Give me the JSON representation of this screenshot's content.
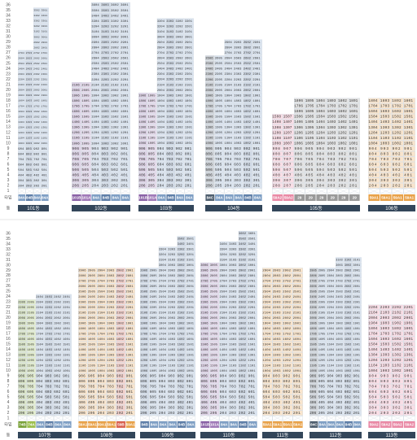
{
  "type_colors": {
    "84A": "#7f9fc4",
    "84B": "#5f7fa8",
    "84C": "#4f5f6f",
    "101A": "#a07ab8",
    "101B": "#8a62a6",
    "59A1": "#e8a24a",
    "59A2": "#e98aa6",
    "59B": "#d9604f",
    "29": "#9a9a9a",
    "74A": "#9cbf4e",
    "74B": "#7aa23a"
  },
  "panels": [
    {
      "floor_labels": [
        "36",
        "35",
        "34",
        "33",
        "32",
        "31",
        "30",
        "29",
        "28",
        "27",
        "26",
        "25",
        "24",
        "23",
        "22",
        "21",
        "20",
        "19",
        "18",
        "17",
        "16",
        "15",
        "14",
        "13",
        "12",
        "11",
        "10",
        "9",
        "8",
        "7",
        "6",
        "5",
        "4",
        "3",
        "2",
        "1"
      ],
      "type_label": "타입",
      "building_label": "동",
      "buildings": [
        {
          "name": "101동",
          "types": [
            "84A",
            "84B",
            "84A",
            "84A"
          ],
          "rows": [
            "3502 3501",
            "3402 3401",
            "3302 3301",
            "3202 3201",
            "3102 3101",
            "3002 3001",
            "2902 2901",
            "2802 2801",
            "2704 2703 2702 2701",
            "2604 2603 2602 2601",
            "2504 2503 2502 2501",
            "2404 2403 2402 2401",
            "2304 2303 2302 2301",
            "2204 2203 2202 2201",
            "2104 2103 2102 2101",
            "2004 2003 2002 2001",
            "1904 1903 1902 1901",
            "1804 1803 1802 1801",
            "1704 1703 1702 1701",
            "1604 1603 1602 1601",
            "1504 1503 1502 1501",
            "1404 1403 1402 1401",
            "1304 1303 1302 1301",
            "1204 1203 1202 1201",
            "1104 1103 1102 1101",
            "1004 1003 1002 1001",
            "904 903 902 901",
            "804 803 802 801",
            "704 703 702 701",
            "604 603 602 601",
            "504 503 502 501",
            "404 403 402 401",
            "304 303 302 301",
            "204 203 202 201"
          ]
        },
        {
          "name": "102동",
          "types": [
            "101B",
            "101A",
            "84A",
            "84B",
            "84A",
            "84A"
          ],
          "rows": [
            "3604 3603 3602 3601",
            "3504 3503 3502 3501",
            "3404 3403 3402 3401",
            "3304 3303 3302 3301",
            "3204 3203 3202 3201",
            "3104 3103 3102 3101",
            "3004 3003 3002 3001",
            "2904 2903 2902 2901",
            "2804 2803 2802 2801",
            "2704 2703 2702 2701",
            "2604 2603 2602 2601",
            "2504 2503 2502 2501",
            "2404 2403 2402 2401",
            "2304 2303 2302 2301",
            "2204 2203 2202 2201",
            "2106 2105 2104 2103 2102 2101",
            "2006 2005 2004 2003 2002 2001",
            "1906 1905 1904 1903 1902 1901",
            "1806 1805 1804 1803 1802 1801",
            "1706 1705 1704 1703 1702 1701",
            "1606 1605 1604 1603 1602 1601",
            "1506 1505 1504 1503 1502 1501",
            "1406 1405 1404 1403 1402 1401",
            "1306 1305 1304 1303 1302 1301",
            "1206 1205 1204 1203 1202 1201",
            "1106 1105 1104 1103 1102 1101",
            "1006 1005 1004 1003 1002 1001",
            "906 905 904 903 902 901",
            "806 805 804 803 802 801",
            "706 705 704 703 702 701",
            "606 605 604 603 602 601",
            "506 505 504 503 502 501",
            "406 405 404 403 402 401",
            "306 305 304 303 302 301",
            "206 205 204 203 202 201"
          ]
        },
        {
          "name": "103동",
          "types": [
            "101B",
            "101A",
            "84A",
            "84B",
            "84A",
            "84A"
          ],
          "rows": [
            "3304 3303 3302 3301",
            "3204 3203 3202 3201",
            "3104 3103 3102 3101",
            "3004 3003 3002 3001",
            "2904 2903 2902 2901",
            "2804 2803 2802 2801",
            "2704 2703 2702 2701",
            "2604 2603 2602 2601",
            "2504 2503 2502 2501",
            "2404 2403 2402 2401",
            "2304 2303 2302 2301",
            "2204 2203 2202 2201",
            "2104 2103 2102 2101",
            "2004 2003 2002 2001",
            "1906 1905 1904 1903 1902 1901",
            "1806 1805 1804 1803 1802 1801",
            "1706 1705 1704 1703 1702 1701",
            "1606 1605 1604 1603 1602 1601",
            "1506 1505 1504 1503 1502 1501",
            "1406 1405 1404 1403 1402 1401",
            "1306 1305 1304 1303 1302 1301",
            "1206 1205 1204 1203 1202 1201",
            "1106 1105 1104 1103 1102 1101",
            "1006 1005 1004 1003 1002 1001",
            "906 905 904 903 902 901",
            "806 805 804 803 802 801",
            "706 705 704 703 702 701",
            "606 605 604 603 602 601",
            "506 505 504 503 502 501",
            "406 405 404 403 402 401",
            "306 305 304 303 302 301",
            "206 205 204 203 202 201"
          ]
        },
        {
          "name": "104동",
          "types": [
            "84C",
            "84A",
            "84A",
            "84A",
            "84B",
            "84A"
          ],
          "rows": [
            "2904 2903 2902 2901",
            "2804 2803 2802 2801",
            "2704 2703 2702 2701",
            "2606 2605 2604 2603 2602 2601",
            "2506 2505 2504 2503 2502 2501",
            "2406 2405 2404 2403 2402 2401",
            "2306 2305 2304 2303 2302 2301",
            "2206 2205 2204 2203 2202 2201",
            "2106 2105 2104 2103 2102 2101",
            "2006 2005 2004 2003 2002 2001",
            "1906 1905 1904 1903 1902 1901",
            "1806 1805 1804 1803 1802 1801",
            "1706 1705 1704 1703 1702 1701",
            "1606 1605 1604 1603 1602 1601",
            "1506 1505 1504 1503 1502 1501",
            "1406 1405 1404 1403 1402 1401",
            "1306 1305 1304 1303 1302 1301",
            "1206 1205 1204 1203 1202 1201",
            "1106 1105 1104 1103 1102 1101",
            "1006 1005 1004 1003 1002 1001",
            "906 905 904 903 902 901",
            "806 805 804 803 802 801",
            "706 705 704 703 702 701",
            "606 605 604 603 602 601",
            "506 505 504 503 502 501",
            "406 405 404 403 402 401",
            "306 305 304 303 302 301",
            "206 205 204 203 202 201"
          ]
        },
        {
          "name": "105동",
          "types": [
            "59A2",
            "59A2",
            "29",
            "29",
            "29",
            "29",
            "29",
            "29"
          ],
          "rows": [
            "1806 1805 1804 1803 1802 1801",
            "1706 1705 1704 1703 1702 1701",
            "1606 1605 1604 1603 1602 1601",
            "1508 1507 1506 1505 1504 1503 1502 1501",
            "1408 1407 1406 1405 1404 1403 1402 1401",
            "1308 1307 1306 1305 1304 1303 1302 1301",
            "1208 1207 1206 1205 1204 1203 1202 1201",
            "1108 1107 1106 1105 1104 1103 1102 1101",
            "1008 1007 1006 1005 1004 1003 1002 1001",
            "908 907 906 905 904 903 902 901",
            "808 807 806 805 804 803 802 801",
            "708 707 706 705 704 703 702 701",
            "608 607 606 605 604 603 602 601",
            "508 507 506 505 504 503 502 501",
            "408 407 406 405 404 403 402 401",
            "308 307 306 305 304 303 302 301",
            "208 207 206 205 204 203 202 201"
          ]
        },
        {
          "name": "106동",
          "types": [
            "59A1",
            "59A1",
            "59A1",
            "59A1"
          ],
          "rows": [
            "1804 1803 1802 1801",
            "1704 1703 1702 1701",
            "1604 1603 1602 1601",
            "1504 1503 1502 1501",
            "1404 1403 1402 1401",
            "1304 1303 1302 1301",
            "1204 1203 1202 1201",
            "1104 1103 1102 1101",
            "1004 1003 1002 1001",
            "904 903 902 901",
            "804 803 802 801",
            "704 703 702 701",
            "604 603 602 601",
            "504 503 502 501",
            "404 403 402 401",
            "304 303 302 301",
            "204 203 202 201"
          ]
        }
      ]
    },
    {
      "floor_labels": [
        "36",
        "35",
        "34",
        "33",
        "32",
        "31",
        "30",
        "29",
        "28",
        "27",
        "26",
        "25",
        "24",
        "23",
        "22",
        "21",
        "20",
        "19",
        "18",
        "17",
        "16",
        "15",
        "14",
        "13",
        "12",
        "11",
        "10",
        "9",
        "8",
        "7",
        "6",
        "5",
        "4",
        "3",
        "2",
        "1"
      ],
      "type_label": "타입",
      "building_label": "동",
      "buildings": [
        {
          "name": "107동",
          "types": [
            "74B",
            "74A",
            "84A",
            "84B",
            "84A",
            "84A"
          ],
          "rows": [
            "2404 2403 2402 2401",
            "2306 2305 2304 2303 2302 2301",
            "2206 2205 2204 2203 2202 2201",
            "2106 2105 2104 2103 2102 2101",
            "2006 2005 2004 2003 2002 2001",
            "1906 1905 1904 1903 1902 1901",
            "1806 1805 1804 1803 1802 1801",
            "1706 1705 1704 1703 1702 1701",
            "1606 1605 1604 1603 1602 1601",
            "1506 1505 1504 1503 1502 1501",
            "1406 1405 1404 1403 1402 1401",
            "1306 1305 1304 1303 1302 1301",
            "1206 1205 1204 1203 1202 1201",
            "1106 1105 1104 1103 1102 1101",
            "1006 1005 1004 1003 1002 1001",
            "906 905 904 903 902 901",
            "806 805 804 803 802 801",
            "706 705 704 703 702 701",
            "606 605 604 603 602 601",
            "506 505 504 503 502 501",
            "406 405 404 403 402 401",
            "306 305 304 303 302 301",
            "206 205 204 203 202 201"
          ]
        },
        {
          "name": "108동",
          "types": [
            "59A1",
            "59A1",
            "59A1",
            "59A1",
            "59B",
            "59A1"
          ],
          "rows": [
            "2906 2905 2904 2903 2902 2901",
            "2806 2805 2804 2803 2802 2801",
            "2706 2705 2704 2703 2702 2701",
            "2606 2605 2604 2603 2602 2601",
            "2506 2505 2504 2503 2502 2501",
            "2406 2405 2404 2403 2402 2401",
            "2306 2305 2304 2303 2302 2301",
            "2206 2205 2204 2203 2202 2201",
            "2106 2105 2104 2103 2102 2101",
            "2006 2005 2004 2003 2002 2001",
            "1906 1905 1904 1903 1902 1901",
            "1806 1805 1804 1803 1802 1801",
            "1706 1705 1704 1703 1702 1701",
            "1606 1605 1604 1603 1602 1601",
            "1506 1505 1504 1503 1502 1501",
            "1406 1405 1404 1403 1402 1401",
            "1306 1305 1304 1303 1302 1301",
            "1206 1205 1204 1203 1202 1201",
            "1106 1105 1104 1103 1102 1101",
            "1006 1005 1004 1003 1002 1001",
            "906 905 904 903 902 901",
            "806 805 804 803 802 801",
            "706 705 704 703 702 701",
            "606 605 604 603 602 601",
            "506 505 504 503 502 501",
            "406 405 404 403 402 401",
            "306 305 304 303 302 301",
            "206 205 204 203 202 201"
          ]
        },
        {
          "name": "109동",
          "types": [
            "84B",
            "84A",
            "84A",
            "84A",
            "84B",
            "84A"
          ],
          "rows": [
            "3502 3501",
            "3402 3401",
            "3304 3303 3302 3301",
            "3204 3203 3202 3201",
            "3104 3103 3102 3101",
            "3004 3003 3002 3001",
            "2906 2905 2904 2903 2902 2901",
            "2806 2805 2804 2803 2802 2801",
            "2706 2705 2704 2703 2702 2701",
            "2606 2605 2604 2603 2602 2601",
            "2506 2505 2504 2503 2502 2501",
            "2406 2405 2404 2403 2402 2401",
            "2306 2305 2304 2303 2302 2301",
            "2206 2205 2204 2203 2202 2201",
            "2106 2105 2104 2103 2102 2101",
            "2006 2005 2004 2003 2002 2001",
            "1906 1905 1904 1903 1902 1901",
            "1806 1805 1804 1803 1802 1801",
            "1706 1705 1704 1703 1702 1701",
            "1606 1605 1604 1603 1602 1601",
            "1506 1505 1504 1503 1502 1501",
            "1406 1405 1404 1403 1402 1401",
            "1306 1305 1304 1303 1302 1301",
            "1206 1205 1204 1203 1202 1201",
            "1106 1105 1104 1103 1102 1101",
            "1006 1005 1004 1003 1002 1001",
            "906 905 904 903 902 901",
            "806 805 804 803 802 801",
            "706 705 704 703 702 701",
            "606 605 604 603 602 601",
            "506 505 504 503 502 501",
            "406 405 404 403 402 401",
            "306 305 304 303 302 301",
            "206 205 204 203 202 201"
          ]
        },
        {
          "name": "110동",
          "types": [
            "101B",
            "101A",
            "84A",
            "84A",
            "84B",
            "84A"
          ],
          "rows": [
            "3602 3601",
            "3502 3501",
            "3404 3403 3402 3401",
            "3304 3303 3302 3301",
            "3204 3203 3202 3201",
            "3104 3103 3102 3101",
            "3006 3005 3004 3003 3002 3001",
            "2906 2905 2904 2903 2902 2901",
            "2806 2805 2804 2803 2802 2801",
            "2706 2705 2704 2703 2702 2701",
            "2606 2605 2604 2603 2602 2601",
            "2506 2505 2504 2503 2502 2501",
            "2406 2405 2404 2403 2402 2401",
            "2306 2305 2304 2303 2302 2301",
            "2206 2205 2204 2203 2202 2201",
            "2106 2105 2104 2103 2102 2101",
            "2006 2005 2004 2003 2002 2001",
            "1906 1905 1904 1903 1902 1901",
            "1806 1805 1804 1803 1802 1801",
            "1706 1705 1704 1703 1702 1701",
            "1606 1605 1604 1603 1602 1601",
            "1506 1505 1504 1503 1502 1501",
            "1406 1405 1404 1403 1402 1401",
            "1306 1305 1304 1303 1302 1301",
            "1206 1205 1204 1203 1202 1201",
            "1106 1105 1104 1103 1102 1101",
            "1006 1005 1004 1003 1002 1001",
            "906 905 904 903 902 901",
            "806 805 804 803 802 801",
            "706 705 704 703 702 701",
            "606 605 604 603 602 601",
            "506 505 504 503 502 501",
            "406 405 404 403 402 401",
            "306 305 304 303 302 301",
            "206 205 204 203 202 201"
          ]
        },
        {
          "name": "111동",
          "types": [
            "59A1",
            "59A1",
            "59A1",
            "59A1"
          ],
          "rows": [
            "2904 2903 2902 2901",
            "2804 2803 2802 2801",
            "2704 2703 2702 2701",
            "2604 2603 2602 2601",
            "2504 2503 2502 2501",
            "2404 2403 2402 2401",
            "2304 2303 2302 2301",
            "2204 2203 2202 2201",
            "2104 2103 2102 2101",
            "2004 2003 2002 2001",
            "1904 1903 1902 1901",
            "1804 1803 1802 1801",
            "1704 1703 1702 1701",
            "1604 1603 1602 1601",
            "1504 1503 1502 1501",
            "1404 1403 1402 1401",
            "1304 1303 1302 1301",
            "1204 1203 1202 1201",
            "1104 1103 1102 1101",
            "1004 1003 1002 1001",
            "904 903 902 901",
            "804 803 802 801",
            "704 703 702 701",
            "604 603 602 601",
            "504 503 502 501",
            "404 403 402 401",
            "304 303 302 301",
            "204 203 202 201"
          ]
        },
        {
          "name": "112동",
          "types": [
            "84C",
            "84A",
            "84A",
            "84A",
            "84B",
            "84A"
          ],
          "rows": [
            "3103 3102 3101",
            "3003 3002 3001",
            "2906 2905 2904 2903 2902 2901",
            "2806 2805 2804 2803 2802 2801",
            "2706 2705 2704 2703 2702 2701",
            "2606 2605 2604 2603 2602 2601",
            "2506 2505 2504 2503 2502 2501",
            "2406 2405 2404 2403 2402 2401",
            "2306 2305 2304 2303 2302 2301",
            "2206 2205 2204 2203 2202 2201",
            "2106 2105 2104 2103 2102 2101",
            "2006 2005 2004 2003 2002 2001",
            "1906 1905 1904 1903 1902 1901",
            "1806 1805 1804 1803 1802 1801",
            "1706 1705 1704 1703 1702 1701",
            "1606 1605 1604 1603 1602 1601",
            "1506 1505 1504 1503 1502 1501",
            "1406 1405 1404 1403 1402 1401",
            "1306 1305 1304 1303 1302 1301",
            "1206 1205 1204 1203 1202 1201",
            "1106 1105 1104 1103 1102 1101",
            "1006 1005 1004 1003 1002 1001",
            "906 905 904 903 902 901",
            "806 805 804 803 802 801",
            "706 705 704 703 702 701",
            "606 605 604 603 602 601",
            "506 505 504 503 502 501",
            "406 405 404 403 402 401",
            "306 305 304 303 302 301",
            "206 205 204 203 202 201"
          ]
        },
        {
          "name": "113동",
          "types": [
            "59A2",
            "59A2",
            "59A2",
            "59A2"
          ],
          "rows": [
            "2204 2203 2202 2201",
            "2104 2103 2102 2101",
            "2004 2003 2002 2001",
            "1904 1903 1902 1901",
            "1804 1803 1802 1801",
            "1704 1703 1702 1701",
            "1604 1603 1602 1601",
            "1504 1503 1502 1501",
            "1404 1403 1402 1401",
            "1304 1303 1302 1301",
            "1204 1203 1202 1201",
            "1104 1103 1102 1101",
            "1004 1003 1002 1001",
            "904 903 902 901",
            "804 803 802 801",
            "704 703 702 701",
            "604 603 602 601",
            "504 503 502 501",
            "404 403 402 401",
            "304 303 302 301",
            "204 203 202 201"
          ]
        }
      ]
    }
  ]
}
